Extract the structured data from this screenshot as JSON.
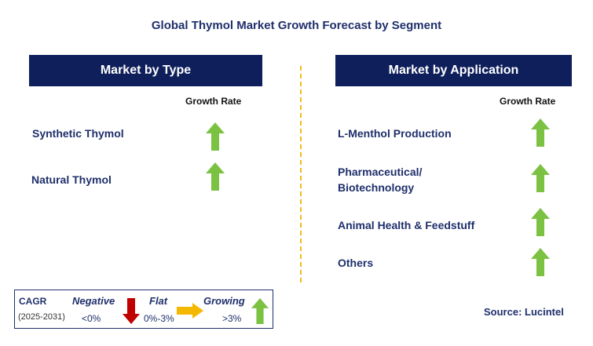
{
  "title": "Global Thymol Market Growth Forecast by Segment",
  "left_panel": {
    "header": "Market by Type",
    "column_label": "Growth Rate",
    "items": [
      {
        "label": "Synthetic Thymol",
        "trend": "growing"
      },
      {
        "label": "Natural Thymol",
        "trend": "growing"
      }
    ]
  },
  "right_panel": {
    "header": "Market by Application",
    "column_label": "Growth Rate",
    "items": [
      {
        "label": "L-Menthol Production",
        "trend": "growing"
      },
      {
        "label": "Pharmaceutical/",
        "label_line2": "Biotechnology",
        "trend": "growing"
      },
      {
        "label": "Animal Health & Feedstuff",
        "trend": "growing"
      },
      {
        "label": "Others",
        "trend": "growing"
      }
    ]
  },
  "legend": {
    "cagr_label": "CAGR",
    "period": "(2025-2031)",
    "negative_label": "Negative",
    "negative_range": "<0%",
    "flat_label": "Flat",
    "flat_range": "0%-3%",
    "growing_label": "Growing",
    "growing_range": ">3%"
  },
  "source": "Source: Lucintel",
  "colors": {
    "header_bg": "#0f1f5c",
    "title_text": "#1f2f6b",
    "growing_arrow": "#7cc242",
    "negative_arrow": "#c00000",
    "flat_arrow": "#f5b800",
    "divider": "#f3b91c"
  }
}
